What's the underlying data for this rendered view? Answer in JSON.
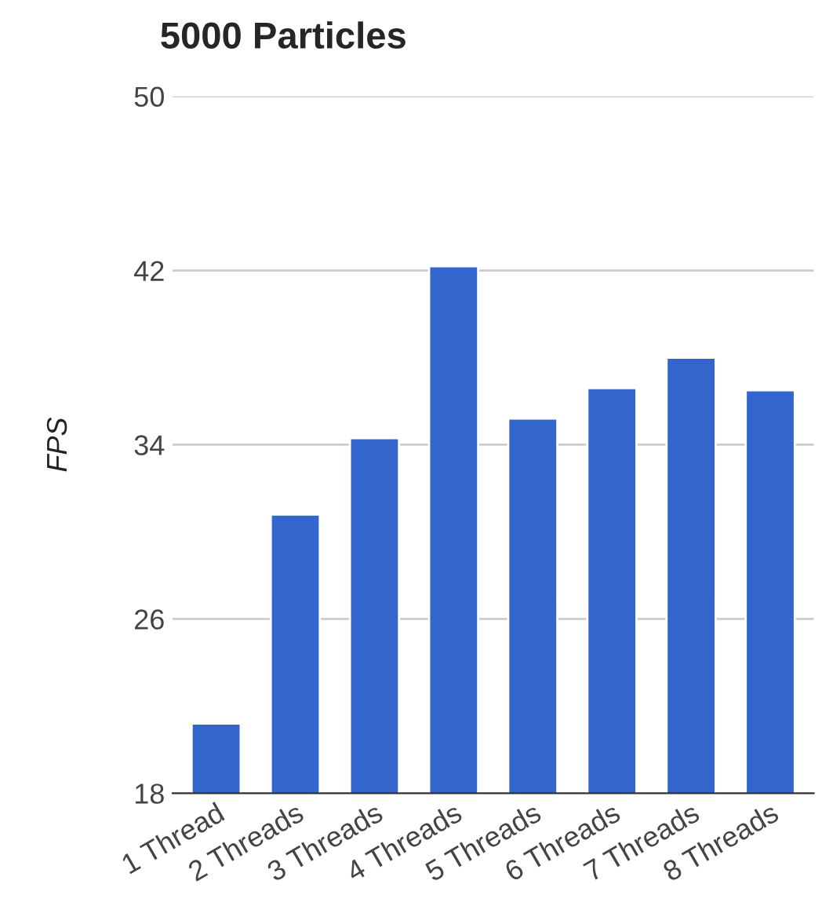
{
  "chart_data": {
    "type": "bar",
    "title": "5000 Particles",
    "ylabel": "FPS",
    "categories": [
      "1 Thread",
      "2 Threads",
      "3 Threads",
      "4 Threads",
      "5 Threads",
      "6 Threads",
      "7 Threads",
      "8 Threads"
    ],
    "series": [
      {
        "color": "#3366cc",
        "values": [
          21.2,
          30.8,
          34.3,
          42.2,
          35.2,
          36.6,
          38.0,
          36.5
        ]
      }
    ],
    "ylim": [
      18,
      50
    ],
    "yticks": [
      18,
      26,
      34,
      42,
      50
    ],
    "grid": "y"
  }
}
